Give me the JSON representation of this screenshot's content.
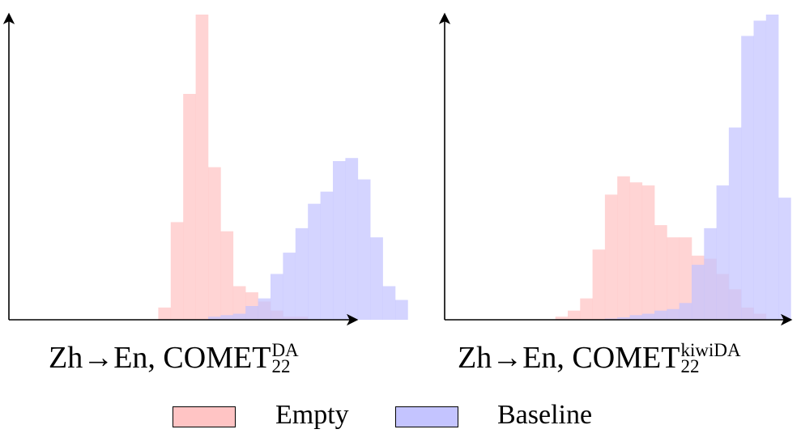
{
  "colors": {
    "empty": "#ffc4c4",
    "baseline": "#c4c4ff",
    "axis": "#000000"
  },
  "legend": {
    "items": [
      {
        "label": "Empty",
        "color": "#ffc4c4"
      },
      {
        "label": "Baseline",
        "color": "#c4c4ff"
      }
    ]
  },
  "chart_data": [
    {
      "type": "bar",
      "title": "",
      "caption": {
        "pair": "Zh→En, COMET",
        "subscript": "22",
        "superscript": "DA"
      },
      "grid": false,
      "series": [
        {
          "name": "Empty",
          "values": [
            0,
            0,
            0,
            0,
            0,
            0,
            0.04,
            0.32,
            0.74,
            1.0,
            0.5,
            0.29,
            0.11,
            0.09,
            0.06,
            0.03,
            0.01,
            0.01,
            0,
            0,
            0,
            0,
            0,
            0,
            0,
            0,
            0
          ]
        },
        {
          "name": "Baseline",
          "values": [
            0,
            0,
            0,
            0,
            0,
            0,
            0,
            0,
            0,
            0,
            0.01,
            0.015,
            0.02,
            0.045,
            0.07,
            0.15,
            0.22,
            0.3,
            0.38,
            0.42,
            0.52,
            0.53,
            0.46,
            0.27,
            0.11,
            0.065,
            0
          ]
        }
      ]
    },
    {
      "type": "bar",
      "title": "",
      "caption": {
        "pair": "Zh→En, COMET",
        "subscript": "22",
        "superscript": "kiwiDA"
      },
      "grid": false,
      "series": [
        {
          "name": "Empty",
          "values": [
            0,
            0,
            0,
            0,
            0,
            0,
            0,
            0,
            0,
            0.01,
            0.03,
            0.07,
            0.23,
            0.41,
            0.47,
            0.45,
            0.44,
            0.31,
            0.27,
            0.27,
            0.21,
            0.2,
            0.15,
            0.1,
            0.04,
            0.02,
            0,
            0
          ]
        },
        {
          "name": "Baseline",
          "values": [
            0,
            0,
            0,
            0,
            0,
            0,
            0,
            0,
            0,
            0,
            0,
            0,
            0.001,
            0.004,
            0.008,
            0.015,
            0.02,
            0.03,
            0.035,
            0.055,
            0.18,
            0.3,
            0.44,
            0.63,
            0.93,
            0.98,
            1.0,
            0.4
          ]
        }
      ]
    }
  ]
}
